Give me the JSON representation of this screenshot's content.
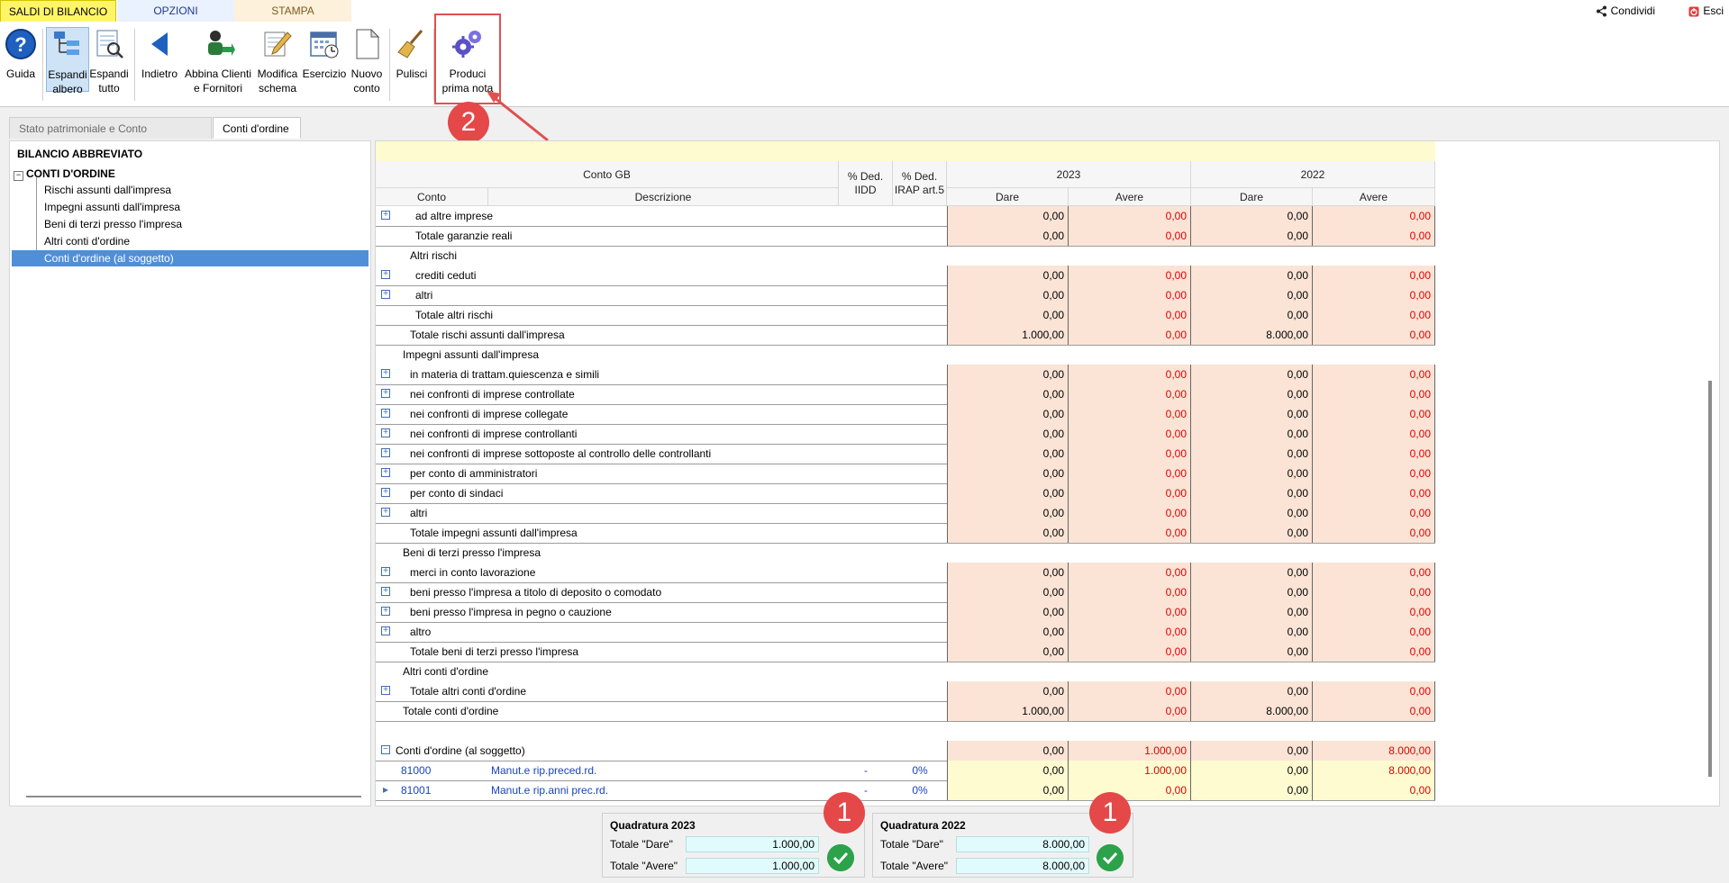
{
  "menu": {
    "tabs": [
      "SALDI DI BILANCIO",
      "OPZIONI",
      "STAMPA"
    ],
    "share_label": "Condividi",
    "exit_label": "Esci"
  },
  "ribbon": {
    "buttons": [
      {
        "icon": "help-icon",
        "line1": "Guida",
        "line2": ""
      },
      {
        "icon": "expand-tree-icon",
        "line1": "Espandi",
        "line2": "albero"
      },
      {
        "icon": "expand-all-icon",
        "line1": "Espandi",
        "line2": "tutto"
      },
      {
        "icon": "back-arrow-icon",
        "line1": "Indietro",
        "line2": ""
      },
      {
        "icon": "match-clients-icon",
        "line1": "Abbina Clienti",
        "line2": "e Fornitori"
      },
      {
        "icon": "edit-scheme-icon",
        "line1": "Modifica",
        "line2": "schema"
      },
      {
        "icon": "calendar-icon",
        "line1": "Esercizio",
        "line2": ""
      },
      {
        "icon": "new-document-icon",
        "line1": "Nuovo",
        "line2": "conto"
      },
      {
        "icon": "broom-icon",
        "line1": "Pulisci",
        "line2": ""
      },
      {
        "icon": "gears-icon",
        "line1": "Produci",
        "line2": "prima nota"
      }
    ]
  },
  "annotations": {
    "badge_top": "2",
    "badge_q1": "1",
    "badge_q2": "1"
  },
  "page_tabs": [
    "Stato patrimoniale e Conto economico",
    "Conti d'ordine"
  ],
  "tree": {
    "root": "BILANCIO ABBREVIATO",
    "group": "CONTI D'ORDINE",
    "items": [
      "Rischi assunti dall'impresa",
      "Impegni assunti dall'impresa",
      "Beni di terzi presso l'impresa",
      "Altri conti d'ordine",
      "Conti d'ordine (al soggetto)"
    ]
  },
  "grid": {
    "headers": {
      "conto_gb": "Conto GB",
      "conto": "Conto",
      "descrizione": "Descrizione",
      "ded_iidd_1": "% Ded.",
      "ded_iidd_2": "IIDD",
      "ded_irap_1": "% Ded.",
      "ded_irap_2": "IRAP art.5",
      "year1": "2023",
      "year2": "2022",
      "dare": "Dare",
      "avere": "Avere"
    },
    "rows": [
      {
        "type": "item",
        "indent": 44,
        "exp": "+",
        "label": "ad altre imprese",
        "v": [
          "0,00",
          "0,00",
          "0,00",
          "0,00"
        ]
      },
      {
        "type": "total",
        "indent": 44,
        "label": "Totale garanzie reali",
        "v": [
          "0,00",
          "0,00",
          "0,00",
          "0,00"
        ]
      },
      {
        "type": "section",
        "indent": 38,
        "label": "Altri rischi"
      },
      {
        "type": "item",
        "indent": 44,
        "exp": "+",
        "label": "crediti ceduti",
        "v": [
          "0,00",
          "0,00",
          "0,00",
          "0,00"
        ]
      },
      {
        "type": "item",
        "indent": 44,
        "exp": "+",
        "label": "altri",
        "v": [
          "0,00",
          "0,00",
          "0,00",
          "0,00"
        ]
      },
      {
        "type": "total",
        "indent": 44,
        "label": "Totale altri rischi",
        "v": [
          "0,00",
          "0,00",
          "0,00",
          "0,00"
        ]
      },
      {
        "type": "total",
        "indent": 38,
        "label": "Totale rischi assunti dall'impresa",
        "v": [
          "1.000,00",
          "0,00",
          "8.000,00",
          "0,00"
        ]
      },
      {
        "type": "section",
        "indent": 30,
        "label": "Impegni assunti dall'impresa"
      },
      {
        "type": "item",
        "indent": 38,
        "exp": "+",
        "label": "in materia di trattam.quiescenza e simili",
        "v": [
          "0,00",
          "0,00",
          "0,00",
          "0,00"
        ]
      },
      {
        "type": "item",
        "indent": 38,
        "exp": "+",
        "label": "nei confronti di imprese controllate",
        "v": [
          "0,00",
          "0,00",
          "0,00",
          "0,00"
        ]
      },
      {
        "type": "item",
        "indent": 38,
        "exp": "+",
        "label": "nei confronti di imprese collegate",
        "v": [
          "0,00",
          "0,00",
          "0,00",
          "0,00"
        ]
      },
      {
        "type": "item",
        "indent": 38,
        "exp": "+",
        "label": "nei confronti di imprese controllanti",
        "v": [
          "0,00",
          "0,00",
          "0,00",
          "0,00"
        ]
      },
      {
        "type": "item",
        "indent": 38,
        "exp": "+",
        "label": "nei confronti di imprese sottoposte al controllo delle controllanti",
        "v": [
          "0,00",
          "0,00",
          "0,00",
          "0,00"
        ]
      },
      {
        "type": "item",
        "indent": 38,
        "exp": "+",
        "label": "per conto di amministratori",
        "v": [
          "0,00",
          "0,00",
          "0,00",
          "0,00"
        ]
      },
      {
        "type": "item",
        "indent": 38,
        "exp": "+",
        "label": "per conto di sindaci",
        "v": [
          "0,00",
          "0,00",
          "0,00",
          "0,00"
        ]
      },
      {
        "type": "item",
        "indent": 38,
        "exp": "+",
        "label": "altri",
        "v": [
          "0,00",
          "0,00",
          "0,00",
          "0,00"
        ]
      },
      {
        "type": "total",
        "indent": 38,
        "label": "Totale impegni assunti dall'impresa",
        "v": [
          "0,00",
          "0,00",
          "0,00",
          "0,00"
        ]
      },
      {
        "type": "section",
        "indent": 30,
        "label": "Beni di terzi presso l'impresa"
      },
      {
        "type": "item",
        "indent": 38,
        "exp": "+",
        "label": "merci in conto lavorazione",
        "v": [
          "0,00",
          "0,00",
          "0,00",
          "0,00"
        ]
      },
      {
        "type": "item",
        "indent": 38,
        "exp": "+",
        "label": "beni presso l'impresa a titolo di deposito o comodato",
        "v": [
          "0,00",
          "0,00",
          "0,00",
          "0,00"
        ]
      },
      {
        "type": "item",
        "indent": 38,
        "exp": "+",
        "label": "beni presso l'impresa in pegno o cauzione",
        "v": [
          "0,00",
          "0,00",
          "0,00",
          "0,00"
        ]
      },
      {
        "type": "item",
        "indent": 38,
        "exp": "+",
        "label": "altro",
        "v": [
          "0,00",
          "0,00",
          "0,00",
          "0,00"
        ]
      },
      {
        "type": "total",
        "indent": 38,
        "label": "Totale beni di terzi presso l'impresa",
        "v": [
          "0,00",
          "0,00",
          "0,00",
          "0,00"
        ]
      },
      {
        "type": "section",
        "indent": 30,
        "label": "Altri conti d'ordine"
      },
      {
        "type": "item",
        "indent": 38,
        "exp": "+",
        "label": "Totale altri conti d'ordine",
        "v": [
          "0,00",
          "0,00",
          "0,00",
          "0,00"
        ]
      },
      {
        "type": "total",
        "indent": 30,
        "label": "Totale conti d'ordine",
        "v": [
          "1.000,00",
          "0,00",
          "8.000,00",
          "0,00"
        ]
      },
      {
        "type": "blank"
      },
      {
        "type": "item",
        "indent": 22,
        "exp": "−",
        "label": "Conti d'ordine (al soggetto)",
        "v": [
          "0,00",
          "1.000,00",
          "0,00",
          "8.000,00"
        ]
      },
      {
        "type": "account",
        "code": "81000",
        "label": "Manut.e rip.preced.rd.",
        "iidd": "-",
        "irap": "0%",
        "v": [
          "0,00",
          "1.000,00",
          "0,00",
          "8.000,00"
        ]
      },
      {
        "type": "account",
        "code": "81001",
        "exp": "▸",
        "label": "Manut.e rip.anni prec.rd.",
        "iidd": "-",
        "irap": "0%",
        "v": [
          "0,00",
          "0,00",
          "0,00",
          "0,00"
        ]
      }
    ]
  },
  "quadratura": [
    {
      "title": "Quadratura 2023",
      "dare_label": "Totale \"Dare\"",
      "dare": "1.000,00",
      "avere_label": "Totale \"Avere\"",
      "avere": "1.000,00"
    },
    {
      "title": "Quadratura 2022",
      "dare_label": "Totale \"Dare\"",
      "dare": "8.000,00",
      "avere_label": "Totale \"Avere\"",
      "avere": "8.000,00"
    }
  ]
}
